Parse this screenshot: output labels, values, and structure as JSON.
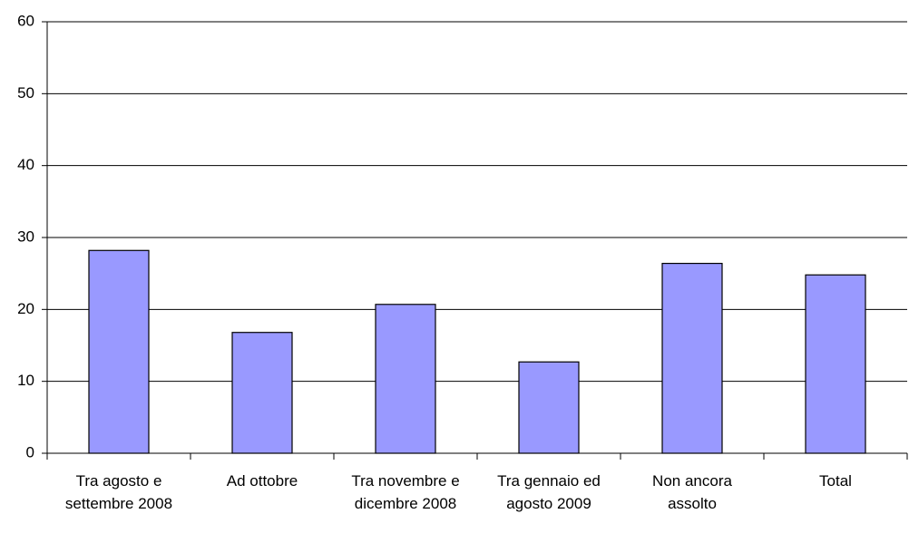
{
  "chart_data": {
    "type": "bar",
    "categories": [
      "Tra agosto e settembre 2008",
      "Ad ottobre",
      "Tra novembre e dicembre 2008",
      "Tra gennaio ed agosto 2009",
      "Non ancora assolto",
      "Total"
    ],
    "values": [
      28.2,
      16.8,
      20.7,
      12.7,
      26.4,
      24.8
    ],
    "color": "#9999ff",
    "ylim": [
      0,
      60
    ],
    "yticks": [
      0,
      10,
      20,
      30,
      40,
      50,
      60
    ],
    "grid": true
  }
}
